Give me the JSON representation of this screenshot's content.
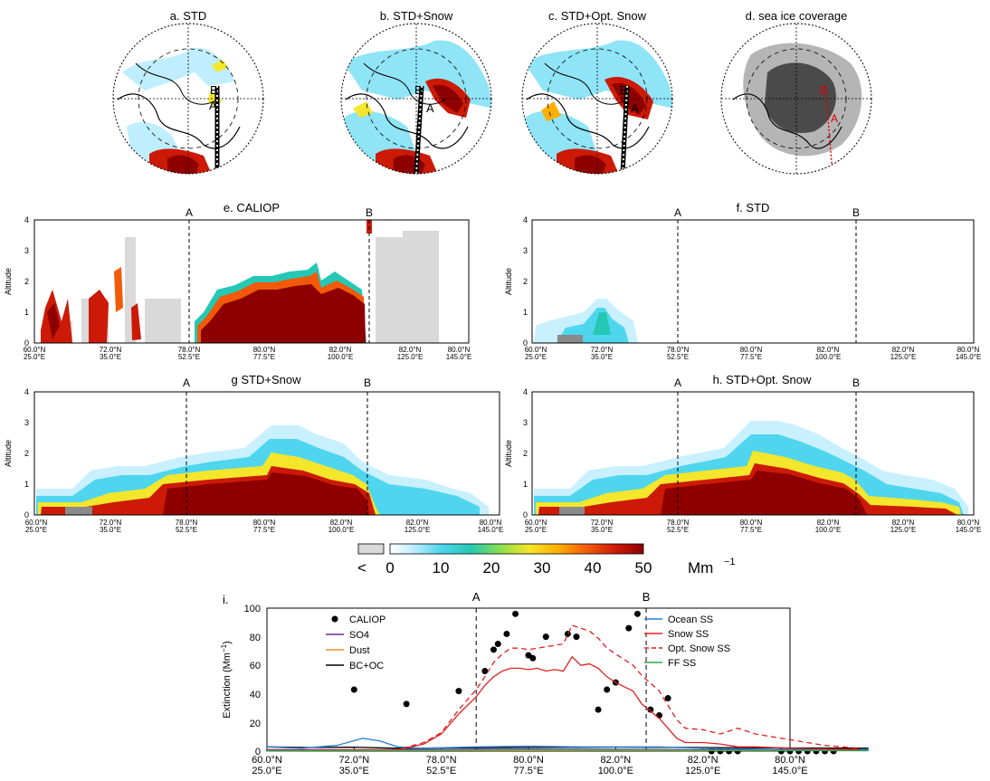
{
  "maps": [
    {
      "title": "a. STD",
      "letters": [
        "B",
        "A"
      ]
    },
    {
      "title": "b. STD+Snow",
      "letters": [
        "B",
        "A"
      ]
    },
    {
      "title": "c. STD+Opt. Snow",
      "letters": [
        "B",
        "A"
      ]
    },
    {
      "title": "d. sea ice coverage",
      "letters": [
        "B",
        "A"
      ]
    }
  ],
  "cross_sections": [
    {
      "title": "e. CALIOP"
    },
    {
      "title": "f. STD"
    },
    {
      "title": "g STD+Snow"
    },
    {
      "title": "h. STD+Opt. Snow"
    }
  ],
  "section_axes": {
    "ylabel": "Altitude",
    "yticks": [
      "0",
      "1",
      "2",
      "3",
      "4"
    ],
    "xticks_lat": [
      "60.0°N",
      "72.0°N",
      "78.0°N",
      "80.0°N",
      "82.0°N",
      "82.0°N",
      "80.0°N"
    ],
    "xticks_lon": [
      "25.0°E",
      "35.0°E",
      "52.5°E",
      "77.5°E",
      "100.0°E",
      "125.0°E",
      "145.0°E"
    ],
    "marker_a": "A",
    "marker_b": "B"
  },
  "colorbar": {
    "labels": [
      "<",
      "0",
      "10",
      "20",
      "30",
      "40",
      "50"
    ],
    "unit": "Mm",
    "unit_exp": "−1",
    "colors": [
      "#ffffff",
      "#c8f0ff",
      "#4fd6ee",
      "#25c8b4",
      "#8fe04a",
      "#f4e62a",
      "#ffb000",
      "#f25a0a",
      "#cc1a06",
      "#8e0000"
    ]
  },
  "chart_data": {
    "type": "line",
    "panel_label": "i.",
    "ylabel": "Extinction (Mm",
    "ylabel_exp": "−1",
    "ylabel_close": ")",
    "ylim": [
      0,
      100
    ],
    "yticks": [
      "0",
      "20",
      "40",
      "60",
      "80",
      "100"
    ],
    "x_ticks": [
      {
        "lat": "60.0°N",
        "lon": "25.0°E"
      },
      {
        "lat": "72.0°N",
        "lon": "35.0°E"
      },
      {
        "lat": "78.0°N",
        "lon": "52.5°E"
      },
      {
        "lat": "80.0°N",
        "lon": "77.5°E"
      },
      {
        "lat": "82.0°N",
        "lon": "100.0°E"
      },
      {
        "lat": "82.0°N",
        "lon": "125.0°E"
      },
      {
        "lat": "80.0°N",
        "lon": "145.0°E"
      }
    ],
    "marker_a": "A",
    "marker_b": "B",
    "marker_a_pos": 2.4,
    "marker_b_pos": 4.35,
    "legend_left": [
      "CALIOP",
      "SO4",
      "Dust",
      "BC+OC"
    ],
    "legend_right": [
      "Ocean SS",
      "Snow SS",
      "Opt. Snow SS",
      "FF SS"
    ],
    "series": [
      {
        "name": "CALIOP",
        "color": "#000000",
        "style": "points",
        "points": [
          [
            1.0,
            43
          ],
          [
            1.6,
            33
          ],
          [
            2.2,
            42
          ],
          [
            2.5,
            56
          ],
          [
            2.6,
            71
          ],
          [
            2.65,
            75
          ],
          [
            2.75,
            82
          ],
          [
            2.85,
            96
          ],
          [
            3.0,
            67
          ],
          [
            3.05,
            65
          ],
          [
            3.2,
            80
          ],
          [
            3.45,
            82
          ],
          [
            3.55,
            80
          ],
          [
            3.8,
            29
          ],
          [
            3.9,
            43
          ],
          [
            4.0,
            48
          ],
          [
            4.15,
            86
          ],
          [
            4.25,
            96
          ],
          [
            4.4,
            29
          ],
          [
            4.5,
            25
          ],
          [
            4.6,
            37
          ],
          [
            5.1,
            0
          ],
          [
            5.2,
            0
          ],
          [
            5.3,
            0
          ],
          [
            5.4,
            0
          ],
          [
            5.9,
            0
          ],
          [
            6.0,
            0
          ],
          [
            6.1,
            0
          ],
          [
            6.2,
            0
          ],
          [
            6.3,
            0
          ],
          [
            6.4,
            0
          ],
          [
            6.5,
            0
          ]
        ]
      },
      {
        "name": "SO4",
        "color": "#6a2c91",
        "style": "solid",
        "points": [
          [
            0,
            1
          ],
          [
            1,
            1
          ],
          [
            2,
            1.2
          ],
          [
            3,
            1.3
          ],
          [
            4,
            1.2
          ],
          [
            5,
            1
          ],
          [
            6,
            1
          ],
          [
            6.9,
            1
          ]
        ]
      },
      {
        "name": "Dust",
        "color": "#f28c28",
        "style": "solid",
        "points": [
          [
            0,
            0.3
          ],
          [
            2,
            0.4
          ],
          [
            4,
            0.4
          ],
          [
            6.9,
            0.3
          ]
        ]
      },
      {
        "name": "BC+OC",
        "color": "#000000",
        "style": "solid",
        "points": [
          [
            0,
            3
          ],
          [
            0.5,
            2.5
          ],
          [
            1,
            2.8
          ],
          [
            1.5,
            2
          ],
          [
            2,
            2.2
          ],
          [
            3,
            2.5
          ],
          [
            4,
            2.8
          ],
          [
            5,
            2.5
          ],
          [
            6,
            2.2
          ],
          [
            6.9,
            2
          ]
        ]
      },
      {
        "name": "Ocean SS",
        "color": "#2a7fd0",
        "style": "solid",
        "points": [
          [
            0,
            3
          ],
          [
            0.4,
            2
          ],
          [
            0.8,
            4
          ],
          [
            1.1,
            9
          ],
          [
            1.3,
            7
          ],
          [
            1.5,
            3
          ],
          [
            1.8,
            2
          ],
          [
            2.4,
            3
          ],
          [
            3,
            3.5
          ],
          [
            3.6,
            3
          ],
          [
            4,
            3
          ],
          [
            4.5,
            3
          ],
          [
            5,
            2
          ],
          [
            5.5,
            1.5
          ],
          [
            6,
            1.2
          ],
          [
            6.9,
            1
          ]
        ]
      },
      {
        "name": "Snow SS",
        "color": "#e02020",
        "style": "solid",
        "points": [
          [
            0,
            0.5
          ],
          [
            1.5,
            1
          ],
          [
            1.8,
            5
          ],
          [
            2.0,
            12
          ],
          [
            2.2,
            26
          ],
          [
            2.4,
            38
          ],
          [
            2.5,
            46
          ],
          [
            2.6,
            52
          ],
          [
            2.7,
            56
          ],
          [
            2.8,
            58
          ],
          [
            2.9,
            58
          ],
          [
            3.0,
            57
          ],
          [
            3.1,
            58
          ],
          [
            3.2,
            56
          ],
          [
            3.3,
            57
          ],
          [
            3.4,
            56
          ],
          [
            3.5,
            66
          ],
          [
            3.6,
            60
          ],
          [
            3.7,
            61
          ],
          [
            3.8,
            58
          ],
          [
            3.9,
            52
          ],
          [
            4.0,
            48
          ],
          [
            4.2,
            42
          ],
          [
            4.3,
            33
          ],
          [
            4.5,
            23
          ],
          [
            4.6,
            16
          ],
          [
            4.7,
            9
          ],
          [
            4.8,
            6
          ],
          [
            5.0,
            6
          ],
          [
            5.2,
            5
          ],
          [
            5.4,
            3
          ],
          [
            5.6,
            3
          ],
          [
            6.0,
            2
          ],
          [
            6.4,
            1.5
          ],
          [
            6.8,
            1
          ]
        ]
      },
      {
        "name": "Opt. Snow SS",
        "color": "#e02020",
        "style": "dashed",
        "points": [
          [
            0,
            0.5
          ],
          [
            1.5,
            1
          ],
          [
            1.8,
            6
          ],
          [
            2.0,
            13
          ],
          [
            2.2,
            29
          ],
          [
            2.4,
            43
          ],
          [
            2.5,
            52
          ],
          [
            2.6,
            62
          ],
          [
            2.7,
            68
          ],
          [
            2.8,
            72
          ],
          [
            2.9,
            72
          ],
          [
            3.0,
            71
          ],
          [
            3.2,
            73
          ],
          [
            3.4,
            75
          ],
          [
            3.5,
            88
          ],
          [
            3.6,
            86
          ],
          [
            3.7,
            84
          ],
          [
            3.8,
            79
          ],
          [
            3.9,
            72
          ],
          [
            4.0,
            68
          ],
          [
            4.2,
            60
          ],
          [
            4.3,
            53
          ],
          [
            4.5,
            42
          ],
          [
            4.6,
            32
          ],
          [
            4.7,
            22
          ],
          [
            4.8,
            16
          ],
          [
            5.0,
            15
          ],
          [
            5.2,
            12
          ],
          [
            5.4,
            16
          ],
          [
            5.6,
            12
          ],
          [
            6.0,
            8
          ],
          [
            6.4,
            4
          ],
          [
            6.8,
            2
          ]
        ]
      },
      {
        "name": "FF SS",
        "color": "#2ea84a",
        "style": "solid",
        "points": [
          [
            0,
            0.2
          ],
          [
            3,
            0.8
          ],
          [
            6.9,
            0.3
          ]
        ]
      }
    ]
  }
}
